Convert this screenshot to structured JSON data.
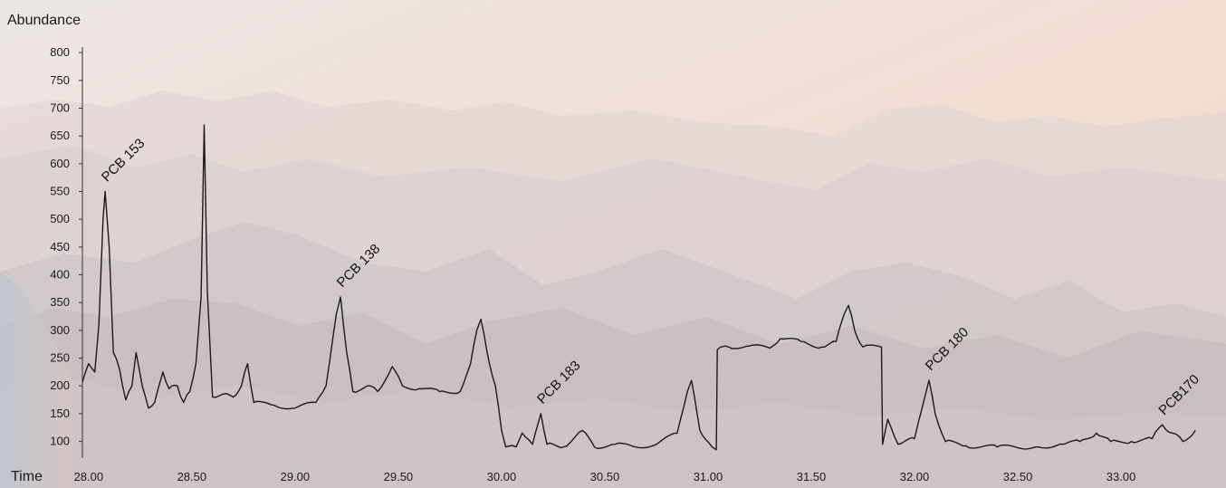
{
  "chart_data": {
    "type": "line",
    "title": "",
    "xlabel": "Time",
    "ylabel": "Abundance",
    "xlim": [
      27.97,
      33.39
    ],
    "ylim": [
      70,
      810
    ],
    "x_ticks": [
      "28.00",
      "28.50",
      "29.00",
      "29.50",
      "30.00",
      "30.50",
      "31.00",
      "31.50",
      "32.00",
      "32.50",
      "33.00"
    ],
    "y_ticks": [
      "100",
      "150",
      "200",
      "250",
      "300",
      "350",
      "400",
      "450",
      "500",
      "550",
      "600",
      "650",
      "700",
      "750",
      "800"
    ],
    "grid": false,
    "series": [
      {
        "points": [
          [
            27.97,
            207
          ],
          [
            28.0,
            240
          ],
          [
            28.03,
            225
          ],
          [
            28.05,
            310
          ],
          [
            28.07,
            500
          ],
          [
            28.08,
            550
          ],
          [
            28.1,
            450
          ],
          [
            28.12,
            260
          ],
          [
            28.15,
            230
          ],
          [
            28.18,
            175
          ],
          [
            28.21,
            200
          ],
          [
            28.23,
            260
          ],
          [
            28.26,
            200
          ],
          [
            28.29,
            160
          ],
          [
            28.32,
            170
          ],
          [
            28.36,
            225
          ],
          [
            28.39,
            195
          ],
          [
            28.43,
            200
          ],
          [
            28.46,
            170
          ],
          [
            28.49,
            190
          ],
          [
            28.52,
            240
          ],
          [
            28.545,
            360
          ],
          [
            28.56,
            670
          ],
          [
            28.575,
            370
          ],
          [
            28.6,
            180
          ],
          [
            28.65,
            185
          ],
          [
            28.7,
            180
          ],
          [
            28.74,
            200
          ],
          [
            28.77,
            240
          ],
          [
            28.8,
            170
          ],
          [
            28.9,
            165
          ],
          [
            29.0,
            160
          ],
          [
            29.1,
            170
          ],
          [
            29.15,
            200
          ],
          [
            29.2,
            330
          ],
          [
            29.22,
            360
          ],
          [
            29.25,
            260
          ],
          [
            29.28,
            190
          ],
          [
            29.35,
            200
          ],
          [
            29.4,
            190
          ],
          [
            29.47,
            235
          ],
          [
            29.52,
            200
          ],
          [
            29.6,
            195
          ],
          [
            29.7,
            190
          ],
          [
            29.8,
            190
          ],
          [
            29.85,
            240
          ],
          [
            29.88,
            300
          ],
          [
            29.9,
            320
          ],
          [
            29.93,
            260
          ],
          [
            29.97,
            200
          ],
          [
            30.0,
            120
          ],
          [
            30.02,
            90
          ],
          [
            30.07,
            90
          ],
          [
            30.1,
            115
          ],
          [
            30.15,
            95
          ],
          [
            30.19,
            150
          ],
          [
            30.22,
            95
          ],
          [
            30.3,
            90
          ],
          [
            30.39,
            120
          ],
          [
            30.45,
            90
          ],
          [
            30.55,
            95
          ],
          [
            30.65,
            90
          ],
          [
            30.75,
            95
          ],
          [
            30.85,
            115
          ],
          [
            30.9,
            190
          ],
          [
            30.92,
            210
          ],
          [
            30.96,
            120
          ],
          [
            31.02,
            90
          ],
          [
            31.04,
            85
          ],
          [
            31.045,
            265
          ],
          [
            31.1,
            270
          ],
          [
            31.2,
            272
          ],
          [
            31.3,
            268
          ],
          [
            31.35,
            285
          ],
          [
            31.45,
            280
          ],
          [
            31.55,
            270
          ],
          [
            31.62,
            280
          ],
          [
            31.66,
            330
          ],
          [
            31.68,
            345
          ],
          [
            31.71,
            300
          ],
          [
            31.75,
            270
          ],
          [
            31.84,
            270
          ],
          [
            31.845,
            95
          ],
          [
            31.87,
            140
          ],
          [
            31.92,
            95
          ],
          [
            32.0,
            105
          ],
          [
            32.05,
            180
          ],
          [
            32.07,
            210
          ],
          [
            32.1,
            150
          ],
          [
            32.15,
            100
          ],
          [
            32.25,
            92
          ],
          [
            32.4,
            90
          ],
          [
            32.6,
            90
          ],
          [
            32.72,
            95
          ],
          [
            32.8,
            100
          ],
          [
            32.88,
            115
          ],
          [
            32.95,
            100
          ],
          [
            33.05,
            100
          ],
          [
            33.15,
            105
          ],
          [
            33.2,
            130
          ],
          [
            33.25,
            115
          ],
          [
            33.3,
            100
          ],
          [
            33.36,
            120
          ]
        ]
      }
    ],
    "annotations": [
      {
        "text": "PCB 153",
        "x": 28.08,
        "y": 550
      },
      {
        "text": "PCB 138",
        "x": 29.22,
        "y": 360
      },
      {
        "text": "PCB 183",
        "x": 30.19,
        "y": 150
      },
      {
        "text": "PCB 180",
        "x": 32.07,
        "y": 210
      },
      {
        "text": "PCB170",
        "x": 33.2,
        "y": 130
      }
    ]
  }
}
